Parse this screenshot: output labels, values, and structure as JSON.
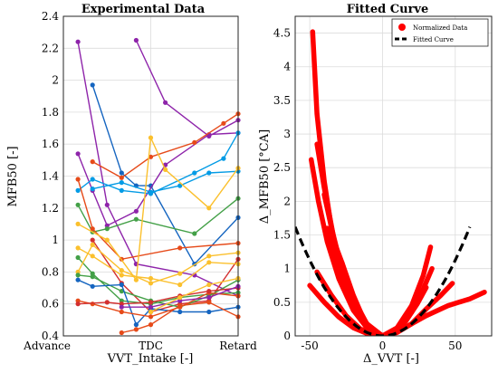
{
  "chart_data": [
    {
      "type": "line",
      "title": "Experimental Data",
      "xlabel": "VVT_Intake [-]",
      "ylabel": "MFB50 [-]",
      "x_categories": [
        "Advance",
        "TDC",
        "Retard"
      ],
      "xlim": [
        0,
        6
      ],
      "ylim": [
        0.4,
        2.4
      ],
      "y_ticks": [
        0.4,
        0.6,
        0.8,
        1,
        1.2,
        1.4,
        1.6,
        1.8,
        2,
        2.2,
        2.4
      ],
      "grid": true,
      "series": [
        {
          "color": "#8e24aa",
          "points": [
            [
              0.5,
              2.24
            ],
            [
              1.5,
              1.22
            ],
            [
              2.5,
              0.85
            ],
            [
              4.5,
              0.78
            ],
            [
              6,
              0.65
            ]
          ]
        },
        {
          "color": "#8e24aa",
          "points": [
            [
              2.5,
              2.25
            ],
            [
              3.5,
              1.86
            ],
            [
              5,
              1.65
            ],
            [
              6,
              1.75
            ]
          ]
        },
        {
          "color": "#1565c0",
          "points": [
            [
              1,
              1.97
            ],
            [
              2,
              1.42
            ],
            [
              2.5,
              1.34
            ],
            [
              3,
              1.34
            ],
            [
              4.5,
              0.85
            ],
            [
              6,
              1.14
            ]
          ]
        },
        {
          "color": "#8e24aa",
          "points": [
            [
              0.5,
              1.54
            ],
            [
              1,
              1.31
            ],
            [
              1.5,
              1.09
            ],
            [
              2.5,
              1.18
            ],
            [
              3.5,
              1.47
            ],
            [
              5,
              1.66
            ],
            [
              6,
              1.67
            ]
          ]
        },
        {
          "color": "#e64a19",
          "points": [
            [
              1,
              1.49
            ],
            [
              2,
              1.39
            ],
            [
              3,
              1.52
            ],
            [
              4.5,
              1.61
            ],
            [
              5.5,
              1.73
            ],
            [
              6,
              1.79
            ]
          ]
        },
        {
          "color": "#039be5",
          "points": [
            [
              0.5,
              1.31
            ],
            [
              1,
              1.38
            ],
            [
              2,
              1.31
            ],
            [
              3,
              1.29
            ],
            [
              4.5,
              1.42
            ],
            [
              5.5,
              1.51
            ],
            [
              6,
              1.67
            ]
          ]
        },
        {
          "color": "#039be5",
          "points": [
            [
              1,
              1.32
            ],
            [
              2,
              1.36
            ],
            [
              3,
              1.3
            ],
            [
              4,
              1.34
            ],
            [
              5,
              1.42
            ],
            [
              6,
              1.43
            ]
          ]
        },
        {
          "color": "#43a047",
          "points": [
            [
              0.5,
              1.22
            ],
            [
              1,
              1.05
            ],
            [
              1.5,
              1.07
            ],
            [
              2.5,
              1.13
            ],
            [
              4.5,
              1.04
            ],
            [
              6,
              1.26
            ]
          ]
        },
        {
          "color": "#e64a19",
          "points": [
            [
              0.5,
              1.38
            ],
            [
              1,
              1.07
            ],
            [
              2,
              0.88
            ],
            [
              4,
              0.95
            ],
            [
              6,
              0.98
            ]
          ]
        },
        {
          "color": "#fbc02d",
          "points": [
            [
              0.5,
              1.1
            ],
            [
              1.5,
              1.0
            ],
            [
              2.5,
              0.75
            ],
            [
              3,
              1.64
            ],
            [
              3.5,
              1.44
            ],
            [
              5,
              1.2
            ],
            [
              6,
              1.45
            ]
          ]
        },
        {
          "color": "#d32f2f",
          "points": [
            [
              1,
              1.0
            ],
            [
              2,
              0.73
            ],
            [
              3,
              0.55
            ],
            [
              4,
              0.6
            ],
            [
              5,
              0.62
            ],
            [
              6,
              0.88
            ]
          ]
        },
        {
          "color": "#43a047",
          "points": [
            [
              0.5,
              0.89
            ],
            [
              1,
              0.79
            ],
            [
              2,
              0.62
            ],
            [
              3,
              0.6
            ],
            [
              4,
              0.64
            ],
            [
              5,
              0.66
            ],
            [
              6,
              0.67
            ]
          ]
        },
        {
          "color": "#fbc02d",
          "points": [
            [
              0.5,
              0.8
            ],
            [
              1,
              0.97
            ],
            [
              2,
              0.81
            ],
            [
              3,
              0.73
            ],
            [
              4,
              0.79
            ],
            [
              5,
              0.9
            ],
            [
              6,
              0.92
            ]
          ]
        },
        {
          "color": "#fbc02d",
          "points": [
            [
              0.5,
              0.95
            ],
            [
              1,
              0.9
            ],
            [
              2,
              0.78
            ],
            [
              3,
              0.76
            ],
            [
              4,
              0.72
            ],
            [
              5,
              0.86
            ],
            [
              6,
              0.85
            ]
          ]
        },
        {
          "color": "#43a047",
          "points": [
            [
              0.5,
              0.78
            ],
            [
              1,
              0.77
            ],
            [
              2,
              0.68
            ],
            [
              3,
              0.62
            ],
            [
              4,
              0.58
            ],
            [
              5,
              0.65
            ],
            [
              6,
              0.75
            ]
          ]
        },
        {
          "color": "#1565c0",
          "points": [
            [
              0.5,
              0.75
            ],
            [
              1,
              0.71
            ],
            [
              2,
              0.72
            ],
            [
              2.5,
              0.47
            ],
            [
              3,
              0.57
            ],
            [
              4,
              0.55
            ],
            [
              5,
              0.55
            ],
            [
              6,
              0.58
            ]
          ]
        },
        {
          "color": "#e64a19",
          "points": [
            [
              0.5,
              0.62
            ],
            [
              1,
              0.6
            ],
            [
              2,
              0.55
            ],
            [
              3,
              0.52
            ],
            [
              4,
              0.58
            ],
            [
              5,
              0.67
            ],
            [
              6,
              0.65
            ]
          ]
        },
        {
          "color": "#d32f2f",
          "points": [
            [
              0.5,
              0.6
            ],
            [
              1.5,
              0.61
            ],
            [
              2,
              0.6
            ],
            [
              3,
              0.61
            ],
            [
              4,
              0.65
            ],
            [
              5,
              0.68
            ],
            [
              6,
              0.7
            ]
          ]
        },
        {
          "color": "#e64a19",
          "points": [
            [
              2,
              0.42
            ],
            [
              2.5,
              0.44
            ],
            [
              3,
              0.47
            ],
            [
              4,
              0.59
            ],
            [
              5,
              0.61
            ],
            [
              6,
              0.52
            ]
          ]
        },
        {
          "color": "#8e24aa",
          "points": [
            [
              2,
              0.58
            ],
            [
              3,
              0.58
            ],
            [
              4,
              0.62
            ],
            [
              5,
              0.64
            ],
            [
              6,
              0.71
            ]
          ]
        },
        {
          "color": "#fbc02d",
          "points": [
            [
              3,
              0.55
            ],
            [
              4,
              0.64
            ],
            [
              5,
              0.72
            ],
            [
              6,
              0.76
            ]
          ]
        }
      ]
    },
    {
      "type": "scatter",
      "title": "Fitted Curve",
      "xlabel": "Δ_VVT [-]",
      "ylabel": "Δ_MFB50 [°CA]",
      "xlim": [
        -60,
        75
      ],
      "ylim": [
        0,
        4.75
      ],
      "x_ticks": [
        -50,
        0,
        50
      ],
      "y_ticks": [
        0,
        0.5,
        1,
        1.5,
        2,
        2.5,
        3,
        3.5,
        4,
        4.5
      ],
      "grid": true,
      "legend": {
        "position": "top-right",
        "entries": [
          "Normalized Data",
          "Fitted Curve"
        ]
      },
      "fitted_curve": {
        "color": "#000000",
        "coeff": 0.00045,
        "x_range": [
          -60,
          60
        ]
      },
      "normalized_data": {
        "color": "#ff0000",
        "series": [
          {
            "points": [
              [
                -48,
                4.52
              ],
              [
                -45,
                3.3
              ],
              [
                -40,
                2.3
              ],
              [
                -34,
                1.45
              ],
              [
                -25,
                0.7
              ],
              [
                -15,
                0.25
              ],
              [
                -5,
                0.03
              ],
              [
                0,
                0
              ]
            ]
          },
          {
            "points": [
              [
                -49,
                2.62
              ],
              [
                -44,
                2.0
              ],
              [
                -38,
                1.4
              ],
              [
                -30,
                0.85
              ],
              [
                -20,
                0.38
              ],
              [
                -10,
                0.1
              ],
              [
                0,
                0
              ]
            ]
          },
          {
            "points": [
              [
                -45,
                2.85
              ],
              [
                -40,
                2.2
              ],
              [
                -33,
                1.4
              ],
              [
                -25,
                0.8
              ],
              [
                -15,
                0.3
              ],
              [
                -6,
                0.05
              ],
              [
                0,
                0
              ]
            ]
          },
          {
            "points": [
              [
                -40,
                2.1
              ],
              [
                -35,
                1.6
              ],
              [
                -28,
                1.0
              ],
              [
                -20,
                0.5
              ],
              [
                -10,
                0.14
              ],
              [
                0,
                0
              ]
            ]
          },
          {
            "points": [
              [
                -38,
                1.6
              ],
              [
                -30,
                1.0
              ],
              [
                -22,
                0.55
              ],
              [
                -12,
                0.18
              ],
              [
                0,
                0
              ]
            ]
          },
          {
            "points": [
              [
                -35,
                1.5
              ],
              [
                -28,
                1.1
              ],
              [
                -20,
                0.55
              ],
              [
                -10,
                0.15
              ],
              [
                0,
                0
              ]
            ]
          },
          {
            "points": [
              [
                -32,
                1.3
              ],
              [
                -25,
                0.8
              ],
              [
                -18,
                0.4
              ],
              [
                -8,
                0.08
              ],
              [
                0,
                0
              ]
            ]
          },
          {
            "points": [
              [
                -28,
                1.1
              ],
              [
                -20,
                0.6
              ],
              [
                -12,
                0.2
              ],
              [
                0,
                0
              ]
            ]
          },
          {
            "points": [
              [
                -50,
                0.75
              ],
              [
                -40,
                0.5
              ],
              [
                -30,
                0.28
              ],
              [
                -20,
                0.12
              ],
              [
                -10,
                0.03
              ],
              [
                0,
                0
              ]
            ]
          },
          {
            "points": [
              [
                -45,
                0.95
              ],
              [
                -35,
                0.6
              ],
              [
                -25,
                0.3
              ],
              [
                -15,
                0.1
              ],
              [
                0,
                0
              ]
            ]
          },
          {
            "points": [
              [
                0,
                0
              ],
              [
                10,
                0.12
              ],
              [
                20,
                0.45
              ],
              [
                28,
                0.9
              ],
              [
                33,
                1.32
              ]
            ]
          },
          {
            "points": [
              [
                0,
                0
              ],
              [
                10,
                0.1
              ],
              [
                20,
                0.35
              ],
              [
                28,
                0.7
              ],
              [
                34,
                1.0
              ]
            ]
          },
          {
            "points": [
              [
                0,
                0
              ],
              [
                15,
                0.12
              ],
              [
                30,
                0.3
              ],
              [
                45,
                0.45
              ],
              [
                60,
                0.55
              ],
              [
                70,
                0.65
              ]
            ]
          },
          {
            "points": [
              [
                0,
                0
              ],
              [
                10,
                0.05
              ],
              [
                20,
                0.18
              ],
              [
                30,
                0.4
              ],
              [
                40,
                0.6
              ],
              [
                48,
                0.78
              ]
            ]
          },
          {
            "points": [
              [
                0,
                0
              ],
              [
                8,
                0.06
              ],
              [
                16,
                0.22
              ],
              [
                24,
                0.48
              ],
              [
                30,
                0.72
              ]
            ]
          }
        ]
      }
    }
  ]
}
